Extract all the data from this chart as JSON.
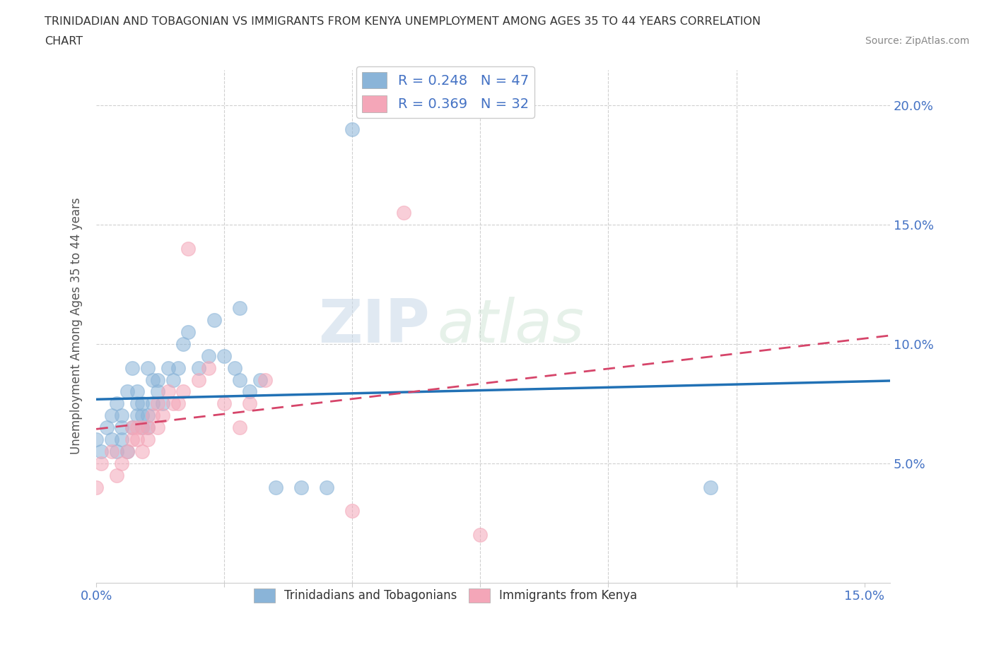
{
  "title_line1": "TRINIDADIAN AND TOBAGONIAN VS IMMIGRANTS FROM KENYA UNEMPLOYMENT AMONG AGES 35 TO 44 YEARS CORRELATION",
  "title_line2": "CHART",
  "source_text": "Source: ZipAtlas.com",
  "ylabel": "Unemployment Among Ages 35 to 44 years",
  "xlim": [
    0.0,
    0.155
  ],
  "ylim": [
    0.0,
    0.215
  ],
  "x_ticks": [
    0.0,
    0.025,
    0.05,
    0.075,
    0.1,
    0.125,
    0.15
  ],
  "y_ticks": [
    0.0,
    0.05,
    0.1,
    0.15,
    0.2
  ],
  "color_blue": "#8ab4d8",
  "color_pink": "#f4a6b8",
  "line_blue": "#2171b5",
  "line_pink": "#d6456a",
  "blue_scatter_x": [
    0.0,
    0.001,
    0.002,
    0.003,
    0.003,
    0.004,
    0.004,
    0.005,
    0.005,
    0.005,
    0.006,
    0.006,
    0.007,
    0.007,
    0.008,
    0.008,
    0.008,
    0.009,
    0.009,
    0.009,
    0.01,
    0.01,
    0.01,
    0.011,
    0.011,
    0.012,
    0.012,
    0.013,
    0.014,
    0.015,
    0.016,
    0.017,
    0.018,
    0.02,
    0.022,
    0.023,
    0.025,
    0.027,
    0.028,
    0.03,
    0.032,
    0.035,
    0.04,
    0.045,
    0.05,
    0.12,
    0.028
  ],
  "blue_scatter_y": [
    0.06,
    0.055,
    0.065,
    0.06,
    0.07,
    0.055,
    0.075,
    0.06,
    0.065,
    0.07,
    0.055,
    0.08,
    0.065,
    0.09,
    0.07,
    0.075,
    0.08,
    0.065,
    0.07,
    0.075,
    0.065,
    0.07,
    0.09,
    0.075,
    0.085,
    0.08,
    0.085,
    0.075,
    0.09,
    0.085,
    0.09,
    0.1,
    0.105,
    0.09,
    0.095,
    0.11,
    0.095,
    0.09,
    0.085,
    0.08,
    0.085,
    0.04,
    0.04,
    0.04,
    0.19,
    0.04,
    0.115
  ],
  "pink_scatter_x": [
    0.0,
    0.001,
    0.003,
    0.004,
    0.005,
    0.006,
    0.007,
    0.007,
    0.008,
    0.008,
    0.009,
    0.009,
    0.01,
    0.01,
    0.011,
    0.012,
    0.012,
    0.013,
    0.014,
    0.015,
    0.016,
    0.017,
    0.018,
    0.02,
    0.022,
    0.025,
    0.028,
    0.03,
    0.033,
    0.05,
    0.06,
    0.075
  ],
  "pink_scatter_y": [
    0.04,
    0.05,
    0.055,
    0.045,
    0.05,
    0.055,
    0.06,
    0.065,
    0.06,
    0.065,
    0.055,
    0.065,
    0.06,
    0.065,
    0.07,
    0.065,
    0.075,
    0.07,
    0.08,
    0.075,
    0.075,
    0.08,
    0.14,
    0.085,
    0.09,
    0.075,
    0.065,
    0.075,
    0.085,
    0.03,
    0.155,
    0.02
  ],
  "watermark_part1": "ZIP",
  "watermark_part2": "atlas",
  "legend_blue_label": "R = 0.248   N = 47",
  "legend_pink_label": "R = 0.369   N = 32",
  "legend_bottom_blue": "Trinidadians and Tobagonians",
  "legend_bottom_pink": "Immigrants from Kenya",
  "tick_color": "#4472c4",
  "grid_color": "#d0d0d0",
  "spine_color": "#cccccc"
}
